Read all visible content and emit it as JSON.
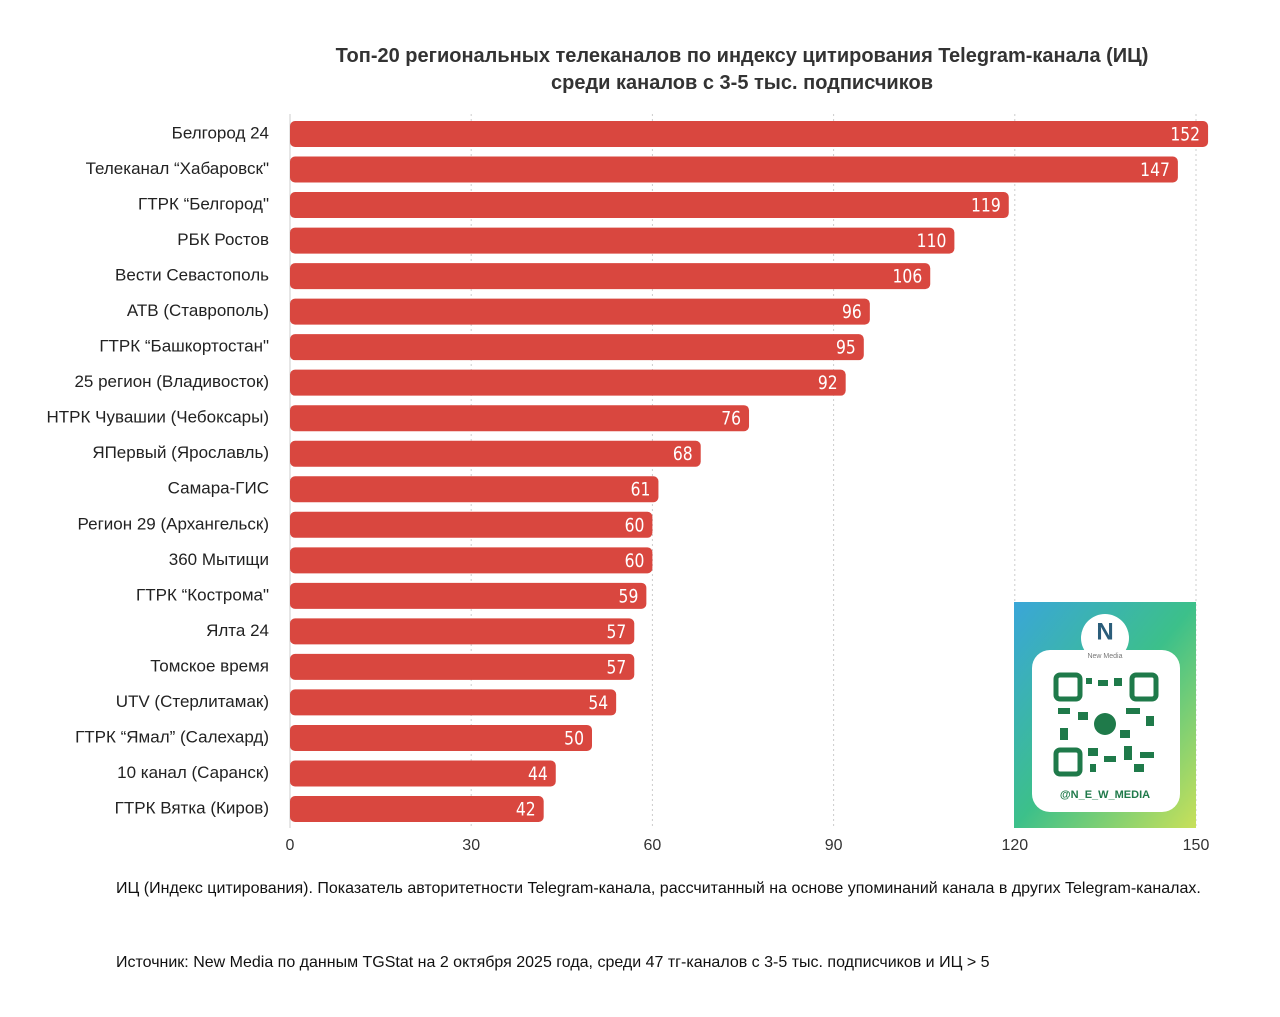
{
  "chart_data": {
    "type": "barh",
    "title": [
      "Топ-20 региональных телеканалов по индексу цитирования Telegram-канала (ИЦ)",
      "среди каналов с 3-5 тыс. подписчиков"
    ],
    "categories": [
      "Белгород 24",
      "Телеканал “Хабаровск\"",
      "ГТРК “Белгород\"",
      "РБК Ростов",
      "Вести Севастополь",
      "АТВ (Ставрополь)",
      "ГТРК “Башкортостан\"",
      "25 регион (Владивосток)",
      "НТРК Чувашии (Чебоксары)",
      "ЯПервый (Ярославль)",
      "Самара-ГИС",
      "Регион 29 (Архангельск)",
      "360 Мытищи",
      "ГТРК “Кострома\"",
      "Ялта 24",
      "Томское время",
      "UTV (Стерлитамак)",
      "ГТРК “Ямал” (Салехард)",
      "10 канал (Саранск)",
      "ГТРК Вятка (Киров)"
    ],
    "values": [
      152,
      147,
      119,
      110,
      106,
      96,
      95,
      92,
      76,
      68,
      61,
      60,
      60,
      59,
      57,
      57,
      54,
      50,
      44,
      42
    ],
    "color": "#d9473f",
    "xlim": [
      0,
      150
    ],
    "xticks": [
      0,
      30,
      60,
      90,
      120,
      150
    ],
    "grid": true,
    "note": "ИЦ (Индекс цитирования). Показатель авторитетности Telegram-канала, рассчитанный на основе упоминаний канала в других Telegram-каналах.",
    "source": "Источник: New Media по данным TGStat на 2 октября 2025 года, среди 47 тг-каналов с 3-5 тыс. подписчиков и ИЦ > 5"
  },
  "badge": {
    "brand": "New Media",
    "handle": "@N_E_W_MEDIA"
  }
}
